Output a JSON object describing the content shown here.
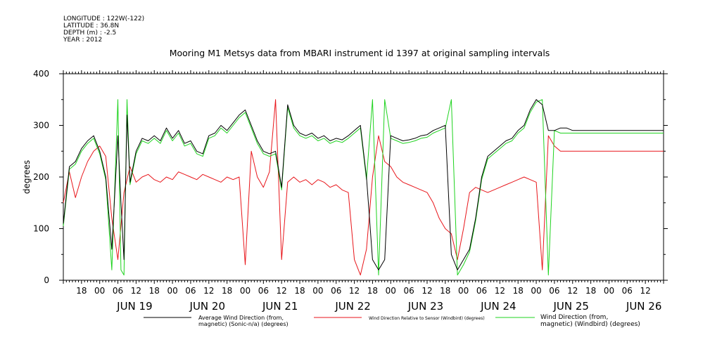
{
  "meta": {
    "longitude": "LONGITUDE : 122W(-122)",
    "latitude": "LATITUDE : 36.8N",
    "depth": "DEPTH (m) : -2.5",
    "year": "YEAR : 2012"
  },
  "chart_data": {
    "type": "line",
    "title": "Mooring M1 Metsys data from MBARI instrument id 1397 at original sampling intervals",
    "ylabel": "degrees",
    "xlabel": "",
    "ylim": [
      0,
      400
    ],
    "yticks": [
      "0",
      "100",
      "200",
      "300",
      "400"
    ],
    "xlim_hours": [
      0,
      198
    ],
    "xaxis_hour_labels": [
      "18",
      "00",
      "06",
      "12",
      "18",
      "00",
      "06",
      "12",
      "18",
      "00",
      "06",
      "12",
      "18",
      "00",
      "06",
      "12",
      "18",
      "00",
      "06",
      "12",
      "18",
      "00",
      "06",
      "12",
      "18",
      "00",
      "06",
      "12",
      "18",
      "00",
      "06",
      "12"
    ],
    "xaxis_date_labels": [
      "JUN 19",
      "JUN 20",
      "JUN 21",
      "JUN 22",
      "JUN 23",
      "JUN 24",
      "JUN 25",
      "JUN 26"
    ],
    "grid": false,
    "legend_position": "bottom",
    "colors": {
      "black": "#000000",
      "red": "#e8161b",
      "green": "#1fd31f"
    },
    "series": [
      {
        "name": "Average Wind Direction (from, magnetic) (Sonic-n/a) (degrees)",
        "color": "#000000",
        "x": [
          0,
          2,
          4,
          6,
          8,
          10,
          12,
          14,
          16,
          18,
          19,
          20,
          21,
          22,
          24,
          26,
          28,
          30,
          32,
          34,
          36,
          38,
          40,
          42,
          44,
          46,
          48,
          50,
          52,
          54,
          56,
          58,
          60,
          62,
          64,
          66,
          68,
          70,
          72,
          74,
          76,
          78,
          80,
          82,
          84,
          86,
          88,
          90,
          92,
          94,
          96,
          98,
          100,
          102,
          104,
          106,
          108,
          110,
          112,
          114,
          116,
          118,
          120,
          122,
          124,
          126,
          128,
          130,
          132,
          134,
          136,
          138,
          140,
          142,
          144,
          146,
          148,
          150,
          152,
          154,
          156,
          158,
          160,
          162,
          164,
          166,
          168,
          170,
          172,
          174,
          176,
          178,
          180,
          182,
          184,
          186,
          188,
          190,
          192,
          194,
          196,
          198
        ],
        "y": [
          110,
          220,
          230,
          255,
          270,
          280,
          250,
          200,
          60,
          280,
          150,
          40,
          320,
          190,
          250,
          275,
          270,
          280,
          270,
          295,
          275,
          290,
          265,
          270,
          250,
          245,
          280,
          285,
          300,
          290,
          305,
          320,
          330,
          300,
          270,
          250,
          245,
          250,
          180,
          340,
          300,
          285,
          280,
          285,
          275,
          280,
          270,
          275,
          272,
          280,
          290,
          300,
          200,
          40,
          20,
          40,
          280,
          275,
          270,
          272,
          275,
          280,
          282,
          290,
          295,
          300,
          50,
          20,
          40,
          60,
          120,
          200,
          240,
          250,
          260,
          270,
          275,
          290,
          300,
          330,
          350,
          340,
          290,
          290,
          295,
          295,
          290,
          290,
          290,
          290,
          290,
          290,
          290,
          290,
          290,
          290,
          290,
          290,
          290,
          290,
          290,
          290
        ]
      },
      {
        "name": "Wind Direction Relative to Sensor (Windbird) (degrees)",
        "color": "#e8161b",
        "x": [
          0,
          2,
          4,
          6,
          8,
          10,
          12,
          14,
          16,
          18,
          20,
          22,
          24,
          26,
          28,
          30,
          32,
          34,
          36,
          38,
          40,
          42,
          44,
          46,
          48,
          50,
          52,
          54,
          56,
          58,
          60,
          62,
          64,
          66,
          68,
          70,
          72,
          74,
          76,
          78,
          80,
          82,
          84,
          86,
          88,
          90,
          92,
          94,
          96,
          98,
          100,
          102,
          104,
          106,
          108,
          110,
          112,
          114,
          116,
          118,
          120,
          122,
          124,
          126,
          128,
          130,
          132,
          134,
          136,
          138,
          140,
          142,
          144,
          146,
          148,
          150,
          152,
          154,
          156,
          158,
          160,
          162,
          164,
          166,
          168,
          170,
          172,
          174,
          176,
          178,
          180,
          182,
          184,
          186,
          188,
          190,
          192,
          194,
          196,
          198
        ],
        "y": [
          150,
          210,
          160,
          200,
          230,
          250,
          260,
          240,
          120,
          40,
          170,
          220,
          190,
          200,
          205,
          195,
          190,
          200,
          195,
          210,
          205,
          200,
          195,
          205,
          200,
          195,
          190,
          200,
          195,
          200,
          30,
          250,
          200,
          180,
          210,
          350,
          40,
          190,
          200,
          190,
          195,
          185,
          195,
          190,
          180,
          185,
          175,
          170,
          40,
          10,
          60,
          200,
          280,
          230,
          220,
          200,
          190,
          185,
          180,
          175,
          170,
          150,
          120,
          100,
          90,
          40,
          100,
          170,
          180,
          175,
          170,
          175,
          180,
          185,
          190,
          195,
          200,
          195,
          190,
          20,
          280,
          260,
          250,
          250,
          250,
          250,
          250,
          250,
          250,
          250,
          250,
          250,
          250,
          250,
          250,
          250,
          250,
          250,
          250,
          250
        ]
      },
      {
        "name": "Wind Direction (from, magnetic) (Windbird) (degrees)",
        "color": "#1fd31f",
        "x": [
          0,
          2,
          4,
          6,
          8,
          10,
          12,
          14,
          16,
          18,
          19,
          20,
          21,
          22,
          24,
          26,
          28,
          30,
          32,
          34,
          36,
          38,
          40,
          42,
          44,
          46,
          48,
          50,
          52,
          54,
          56,
          58,
          60,
          62,
          64,
          66,
          68,
          70,
          72,
          74,
          76,
          78,
          80,
          82,
          84,
          86,
          88,
          90,
          92,
          94,
          96,
          98,
          100,
          102,
          104,
          106,
          108,
          110,
          112,
          114,
          116,
          118,
          120,
          122,
          124,
          126,
          128,
          130,
          132,
          134,
          136,
          138,
          140,
          142,
          144,
          146,
          148,
          150,
          152,
          154,
          156,
          158,
          160,
          162,
          164,
          166,
          168,
          170,
          172,
          174,
          176,
          178,
          180,
          182,
          184,
          186,
          188,
          190,
          192,
          194,
          196,
          198
        ],
        "y": [
          105,
          215,
          225,
          250,
          265,
          275,
          245,
          195,
          20,
          350,
          20,
          10,
          350,
          185,
          245,
          270,
          265,
          275,
          265,
          290,
          270,
          285,
          260,
          265,
          245,
          240,
          275,
          280,
          295,
          285,
          300,
          315,
          325,
          295,
          265,
          245,
          240,
          245,
          175,
          335,
          295,
          280,
          275,
          280,
          270,
          275,
          265,
          270,
          267,
          275,
          285,
          295,
          195,
          350,
          10,
          350,
          275,
          270,
          265,
          267,
          270,
          275,
          277,
          285,
          290,
          295,
          350,
          10,
          30,
          55,
          115,
          195,
          235,
          245,
          255,
          265,
          270,
          285,
          295,
          325,
          345,
          350,
          10,
          290,
          285,
          285,
          285,
          285,
          285,
          285,
          285,
          285,
          285,
          285,
          285,
          285,
          285,
          285,
          285,
          285,
          285,
          285
        ]
      }
    ]
  },
  "legend": {
    "black_line1": "Average Wind Direction (from,",
    "black_line2": "magnetic) (Sonic-n/a) (degrees)",
    "red_line1": "Wind Direction Relative to Sensor (Windbird) (degrees)",
    "green_line1": "Wind Direction (from,",
    "green_line2": "magnetic) (Windbird) (degrees)"
  }
}
